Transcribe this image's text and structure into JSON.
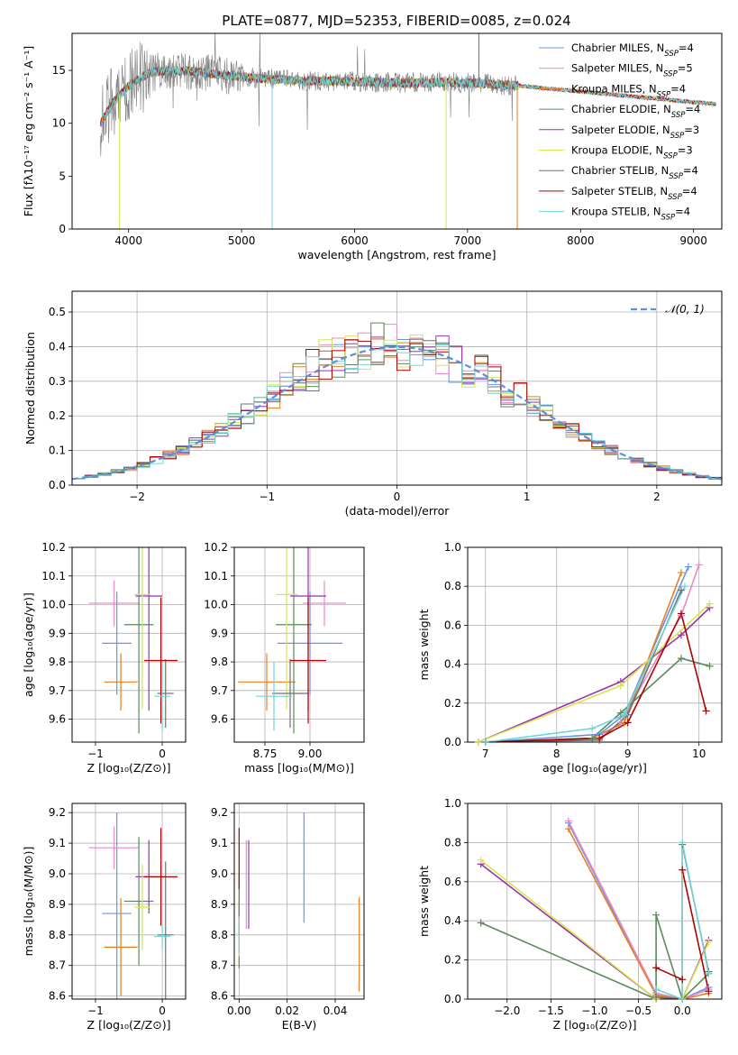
{
  "figure_title": "PLATE=0877, MJD=52353, FIBERID=0085, z=0.024",
  "colors": {
    "cm": "#6495ed",
    "sm": "#e88ac6",
    "km": "#e67e22",
    "ce": "#5a8a5a",
    "se": "#9b30b0",
    "ke": "#d4e84a",
    "cs": "#707070",
    "ss": "#b00000",
    "ks": "#6fd6d6",
    "normal": "#5b8fd9"
  },
  "chart_data": [
    {
      "id": "spectrum",
      "type": "line",
      "title": "PLATE=0877, MJD=52353, FIBERID=0085, z=0.024",
      "xlabel": "wavelength [Angstrom, rest frame]",
      "ylabel": "Flux [fλ10⁻¹⁷ erg cm⁻² s⁻¹ A⁻¹]",
      "xlim": [
        3500,
        9250
      ],
      "ylim": [
        0,
        18.5
      ],
      "xticks": [
        "4000",
        "5000",
        "6000",
        "7000",
        "8000",
        "9000"
      ],
      "yticks": [
        "0",
        "5",
        "10",
        "15"
      ],
      "grid": false,
      "legend_position": "top-right",
      "legend": [
        {
          "key": "cm",
          "label": "Chabrier MILES, N",
          "sub": "SSP",
          "tail": "=4"
        },
        {
          "key": "sm",
          "label": "Salpeter MILES, N",
          "sub": "SSP",
          "tail": "=5"
        },
        {
          "key": "km",
          "label": "Kroupa MILES, N",
          "sub": "SSP",
          "tail": "=4"
        },
        {
          "key": "ce",
          "label": "Chabrier ELODIE, N",
          "sub": "SSP",
          "tail": "=4"
        },
        {
          "key": "se",
          "label": "Salpeter ELODIE, N",
          "sub": "SSP",
          "tail": "=3"
        },
        {
          "key": "ke",
          "label": "Kroupa ELODIE, N",
          "sub": "SSP",
          "tail": "=3"
        },
        {
          "key": "cs",
          "label": "Chabrier STELIB, N",
          "sub": "SSP",
          "tail": "=4"
        },
        {
          "key": "ss",
          "label": "Salpeter STELIB, N",
          "sub": "SSP",
          "tail": "=4"
        },
        {
          "key": "ks",
          "label": "Kroupa STELIB, N",
          "sub": "SSP",
          "tail": "=4"
        }
      ],
      "continuum": {
        "x": [
          3750,
          3850,
          3950,
          4050,
          4200,
          4400,
          4600,
          4800,
          5000,
          5200,
          5400,
          5600,
          5800,
          6000,
          6200,
          6400,
          6600,
          6800,
          7000,
          7200,
          7400,
          7600,
          7800,
          8000,
          8200,
          8400,
          8600,
          8800,
          9000,
          9200
        ],
        "y": [
          10.0,
          11.8,
          13.0,
          14.0,
          14.8,
          15.0,
          14.9,
          14.6,
          14.4,
          14.2,
          14.1,
          14.0,
          14.0,
          13.9,
          13.9,
          13.8,
          13.8,
          13.9,
          13.8,
          13.7,
          13.6,
          13.4,
          13.2,
          13.0,
          12.8,
          12.6,
          12.4,
          12.2,
          12.0,
          11.8
        ]
      },
      "observed_range": [
        3750,
        7450
      ],
      "model_range": [
        7450,
        9200
      ],
      "spikes": [
        {
          "series": "ks",
          "x": 5270,
          "y": 0
        },
        {
          "series": "ke",
          "x": 3920,
          "y": 0
        },
        {
          "series": "ke",
          "x": 6810,
          "y": 0
        },
        {
          "series": "km",
          "x": 7440,
          "y": 0
        },
        {
          "series": "cs",
          "x": 7100,
          "y": 18.5
        }
      ]
    },
    {
      "id": "residuals",
      "type": "step",
      "xlabel": "(data-model)/error",
      "ylabel": "Normed distribution",
      "xlim": [
        -2.5,
        2.5
      ],
      "ylim": [
        0,
        0.56
      ],
      "xticks": [
        "−2",
        "−1",
        "0",
        "1",
        "2"
      ],
      "yticks": [
        "0.0",
        "0.1",
        "0.2",
        "0.3",
        "0.4",
        "0.5"
      ],
      "grid": true,
      "legend_position": "top-right",
      "legend": [
        {
          "key": "normal",
          "label": "𝒩(0, 1)"
        }
      ],
      "bin_width": 0.1
    },
    {
      "id": "age-vs-z",
      "type": "errorbar",
      "xlabel": "Z [log₁₀(Z/Z⊙)]",
      "ylabel": "age  [log₁₀(age/yr)]",
      "xlim": [
        -1.35,
        0.35
      ],
      "ylim": [
        9.52,
        10.2
      ],
      "xticks": [
        "−1",
        "0"
      ],
      "yticks": [
        "9.6",
        "9.7",
        "9.8",
        "9.9",
        "10.0",
        "10.1",
        "10.2"
      ],
      "grid": true,
      "points": [
        {
          "key": "cm",
          "x": -0.68,
          "xe": 0.22,
          "y": 9.865,
          "ye": 0.18
        },
        {
          "key": "sm",
          "x": -0.72,
          "xe": 0.38,
          "y": 10.005,
          "ye": 0.08
        },
        {
          "key": "km",
          "x": -0.62,
          "xe": 0.25,
          "y": 9.73,
          "ye": 0.1
        },
        {
          "key": "ce",
          "x": -0.35,
          "xe": 0.22,
          "y": 9.93,
          "ye": 0.38
        },
        {
          "key": "se",
          "x": -0.2,
          "xe": 0.2,
          "y": 10.03,
          "ye": 0.4
        },
        {
          "key": "ke",
          "x": -0.3,
          "xe": 0.12,
          "y": 10.035,
          "ye": 0.4
        },
        {
          "key": "cs",
          "x": 0.05,
          "xe": 0.12,
          "y": 9.69,
          "ye": 0.12
        },
        {
          "key": "ss",
          "x": -0.02,
          "xe": 0.25,
          "y": 9.805,
          "ye": 0.22
        },
        {
          "key": "ks",
          "x": 0.0,
          "xe": 0.12,
          "y": 9.68,
          "ye": 0.12
        }
      ]
    },
    {
      "id": "age-vs-mass",
      "type": "errorbar",
      "xlabel": "mass [log₁₀(M/M⊙)]",
      "ylabel": "",
      "xlim": [
        8.58,
        9.3
      ],
      "ylim": [
        9.52,
        10.2
      ],
      "xticks": [
        "8.75",
        "9.00"
      ],
      "yticks": [
        "9.6",
        "9.7",
        "9.8",
        "9.9",
        "10.0",
        "10.1",
        "10.2"
      ],
      "grid": true,
      "points": [
        {
          "key": "cm",
          "x": 9.0,
          "xe": 0.18,
          "y": 9.865,
          "ye": 0.18
        },
        {
          "key": "sm",
          "x": 9.08,
          "xe": 0.12,
          "y": 10.005,
          "ye": 0.08
        },
        {
          "key": "km",
          "x": 8.76,
          "xe": 0.16,
          "y": 9.73,
          "ye": 0.1
        },
        {
          "key": "ce",
          "x": 8.91,
          "xe": 0.1,
          "y": 9.93,
          "ye": 0.38
        },
        {
          "key": "se",
          "x": 8.99,
          "xe": 0.1,
          "y": 10.03,
          "ye": 0.4
        },
        {
          "key": "ke",
          "x": 8.87,
          "xe": 0.06,
          "y": 10.035,
          "ye": 0.4
        },
        {
          "key": "cs",
          "x": 8.89,
          "xe": 0.1,
          "y": 9.69,
          "ye": 0.12
        },
        {
          "key": "ss",
          "x": 8.99,
          "xe": 0.1,
          "y": 9.805,
          "ye": 0.22
        },
        {
          "key": "ks",
          "x": 8.8,
          "xe": 0.1,
          "y": 9.68,
          "ye": 0.12
        }
      ]
    },
    {
      "id": "weight-vs-age",
      "type": "line",
      "xlabel": "age  [log₁₀(age/yr)]",
      "ylabel": "mass weight",
      "xlim": [
        6.75,
        10.32
      ],
      "ylim": [
        0,
        1
      ],
      "xticks": [
        "7",
        "8",
        "9",
        "10"
      ],
      "yticks": [
        "0.0",
        "0.2",
        "0.4",
        "0.6",
        "0.8",
        "1.0"
      ],
      "grid": true,
      "series": [
        {
          "key": "cm",
          "x": [
            7.0,
            8.6,
            8.95,
            9.85
          ],
          "y": [
            0.0,
            0.04,
            0.14,
            0.9
          ]
        },
        {
          "key": "sm",
          "x": [
            7.0,
            8.6,
            8.9,
            9.75,
            10.0
          ],
          "y": [
            0.0,
            0.02,
            0.1,
            0.65,
            0.91
          ]
        },
        {
          "key": "km",
          "x": [
            7.0,
            8.5,
            8.95,
            9.75
          ],
          "y": [
            0.0,
            0.02,
            0.1,
            0.87
          ]
        },
        {
          "key": "ce",
          "x": [
            6.9,
            8.5,
            8.9,
            9.75,
            10.15
          ],
          "y": [
            0.0,
            0.02,
            0.15,
            0.43,
            0.39
          ]
        },
        {
          "key": "se",
          "x": [
            6.9,
            8.9,
            9.75,
            10.15
          ],
          "y": [
            0.0,
            0.31,
            0.55,
            0.69
          ]
        },
        {
          "key": "ke",
          "x": [
            6.9,
            8.9,
            10.15
          ],
          "y": [
            0.0,
            0.29,
            0.71
          ]
        },
        {
          "key": "cs",
          "x": [
            7.0,
            8.6,
            9.0,
            9.75
          ],
          "y": [
            0.0,
            0.01,
            0.14,
            0.78
          ]
        },
        {
          "key": "ss",
          "x": [
            7.0,
            8.6,
            9.0,
            9.75,
            10.1
          ],
          "y": [
            0.0,
            0.02,
            0.1,
            0.66,
            0.16
          ]
        },
        {
          "key": "ks",
          "x": [
            7.0,
            8.5,
            8.95,
            9.8
          ],
          "y": [
            0.0,
            0.07,
            0.14,
            0.8
          ]
        }
      ]
    },
    {
      "id": "mass-vs-z",
      "type": "errorbar",
      "xlabel": "Z [log₁₀(Z/Z⊙)]",
      "ylabel": "mass [log₁₀(M/M⊙)]",
      "xlim": [
        -1.35,
        0.35
      ],
      "ylim": [
        8.59,
        9.23
      ],
      "xticks": [
        "−1",
        "0"
      ],
      "yticks": [
        "8.6",
        "8.7",
        "8.8",
        "8.9",
        "9.0",
        "9.1",
        "9.2"
      ],
      "grid": true,
      "points": [
        {
          "key": "cm",
          "x": -0.68,
          "xe": 0.22,
          "y": 8.87,
          "ye": 0.33
        },
        {
          "key": "sm",
          "x": -0.72,
          "xe": 0.38,
          "y": 9.085,
          "ye": 0.07
        },
        {
          "key": "km",
          "x": -0.62,
          "xe": 0.25,
          "y": 8.76,
          "ye": 0.16
        },
        {
          "key": "ce",
          "x": -0.35,
          "xe": 0.22,
          "y": 8.91,
          "ye": 0.21
        },
        {
          "key": "se",
          "x": -0.2,
          "xe": 0.2,
          "y": 8.99,
          "ye": 0.12
        },
        {
          "key": "ke",
          "x": -0.3,
          "xe": 0.12,
          "y": 8.89,
          "ye": 0.14
        },
        {
          "key": "cs",
          "x": 0.05,
          "xe": 0.12,
          "y": 8.8,
          "ye": 0.24
        },
        {
          "key": "ss",
          "x": -0.02,
          "xe": 0.25,
          "y": 8.99,
          "ye": 0.16
        },
        {
          "key": "ks",
          "x": 0.0,
          "xe": 0.12,
          "y": 8.795,
          "ye": 0.04
        }
      ]
    },
    {
      "id": "ebv",
      "type": "errorbar",
      "xlabel": "E(B-V)",
      "ylabel": "",
      "xlim": [
        -0.002,
        0.052
      ],
      "ylim": [
        8.59,
        9.23
      ],
      "xticks": [
        "0.00",
        "0.02",
        "0.04"
      ],
      "yticks": [
        "8.6",
        "8.7",
        "8.8",
        "8.9",
        "9.0",
        "9.1",
        "9.2"
      ],
      "grid": true,
      "points": [
        {
          "key": "cm",
          "x": 0.027,
          "xe": 0,
          "y": 9.02,
          "ye": 0.18
        },
        {
          "key": "sm",
          "x": 0.003,
          "xe": 0,
          "y": 8.965,
          "ye": 0.145
        },
        {
          "key": "km",
          "x": 0.05,
          "xe": 0,
          "y": 8.77,
          "ye": 0.155
        },
        {
          "key": "ce",
          "x": 0.0,
          "xe": 0,
          "y": 8.8,
          "ye": 0.11
        },
        {
          "key": "se",
          "x": 0.004,
          "xe": 0,
          "y": 8.965,
          "ye": 0.145
        },
        {
          "key": "ke",
          "x": 0.0,
          "xe": 0,
          "y": 8.85,
          "ye": 0.12
        },
        {
          "key": "cs",
          "x": 0.0,
          "xe": 0,
          "y": 8.9,
          "ye": 0.1
        },
        {
          "key": "ss",
          "x": 0.0,
          "xe": 0,
          "y": 9.05,
          "ye": 0.1
        },
        {
          "key": "ks",
          "x": 0.0,
          "xe": 0,
          "y": 8.8,
          "ye": 0.06
        }
      ]
    },
    {
      "id": "weight-vs-z",
      "type": "line",
      "xlabel": "Z [log₁₀(Z/Z⊙)]",
      "ylabel": "mass weight",
      "xlim": [
        -2.45,
        0.45
      ],
      "ylim": [
        0,
        1
      ],
      "xticks": [
        "−2.0",
        "−1.5",
        "−1.0",
        "−0.5",
        "0.0"
      ],
      "yticks": [
        "0.0",
        "0.2",
        "0.4",
        "0.6",
        "0.8",
        "1.0"
      ],
      "grid": true,
      "series": [
        {
          "key": "cm",
          "x": [
            -1.3,
            -0.3,
            0.0,
            0.3
          ],
          "y": [
            0.9,
            0.02,
            0.0,
            0.06
          ]
        },
        {
          "key": "sm",
          "x": [
            -1.3,
            -0.3,
            0.0,
            0.3
          ],
          "y": [
            0.91,
            0.03,
            0.0,
            0.05
          ]
        },
        {
          "key": "km",
          "x": [
            -1.3,
            -0.3,
            0.0,
            0.3
          ],
          "y": [
            0.87,
            0.02,
            0.0,
            0.03
          ]
        },
        {
          "key": "ce",
          "x": [
            -2.3,
            -0.3,
            -0.3,
            0.0,
            0.3
          ],
          "y": [
            0.39,
            0.0,
            0.43,
            0.0,
            0.13
          ]
        },
        {
          "key": "se",
          "x": [
            -2.3,
            -0.3,
            0.0,
            0.3
          ],
          "y": [
            0.69,
            0.0,
            0.0,
            0.3
          ]
        },
        {
          "key": "ke",
          "x": [
            -2.3,
            -0.3,
            0.0,
            0.3
          ],
          "y": [
            0.71,
            0.0,
            0.0,
            0.29
          ]
        },
        {
          "key": "cs",
          "x": [
            -0.3,
            0.0,
            0.0,
            0.3
          ],
          "y": [
            0.01,
            0.0,
            0.79,
            0.14
          ]
        },
        {
          "key": "ss",
          "x": [
            -0.3,
            0.0,
            0.0,
            0.3
          ],
          "y": [
            0.16,
            0.1,
            0.66,
            0.04
          ]
        },
        {
          "key": "ks",
          "x": [
            -0.3,
            0.0,
            0.0,
            0.3
          ],
          "y": [
            0.05,
            0.0,
            0.8,
            0.13
          ]
        }
      ]
    }
  ]
}
